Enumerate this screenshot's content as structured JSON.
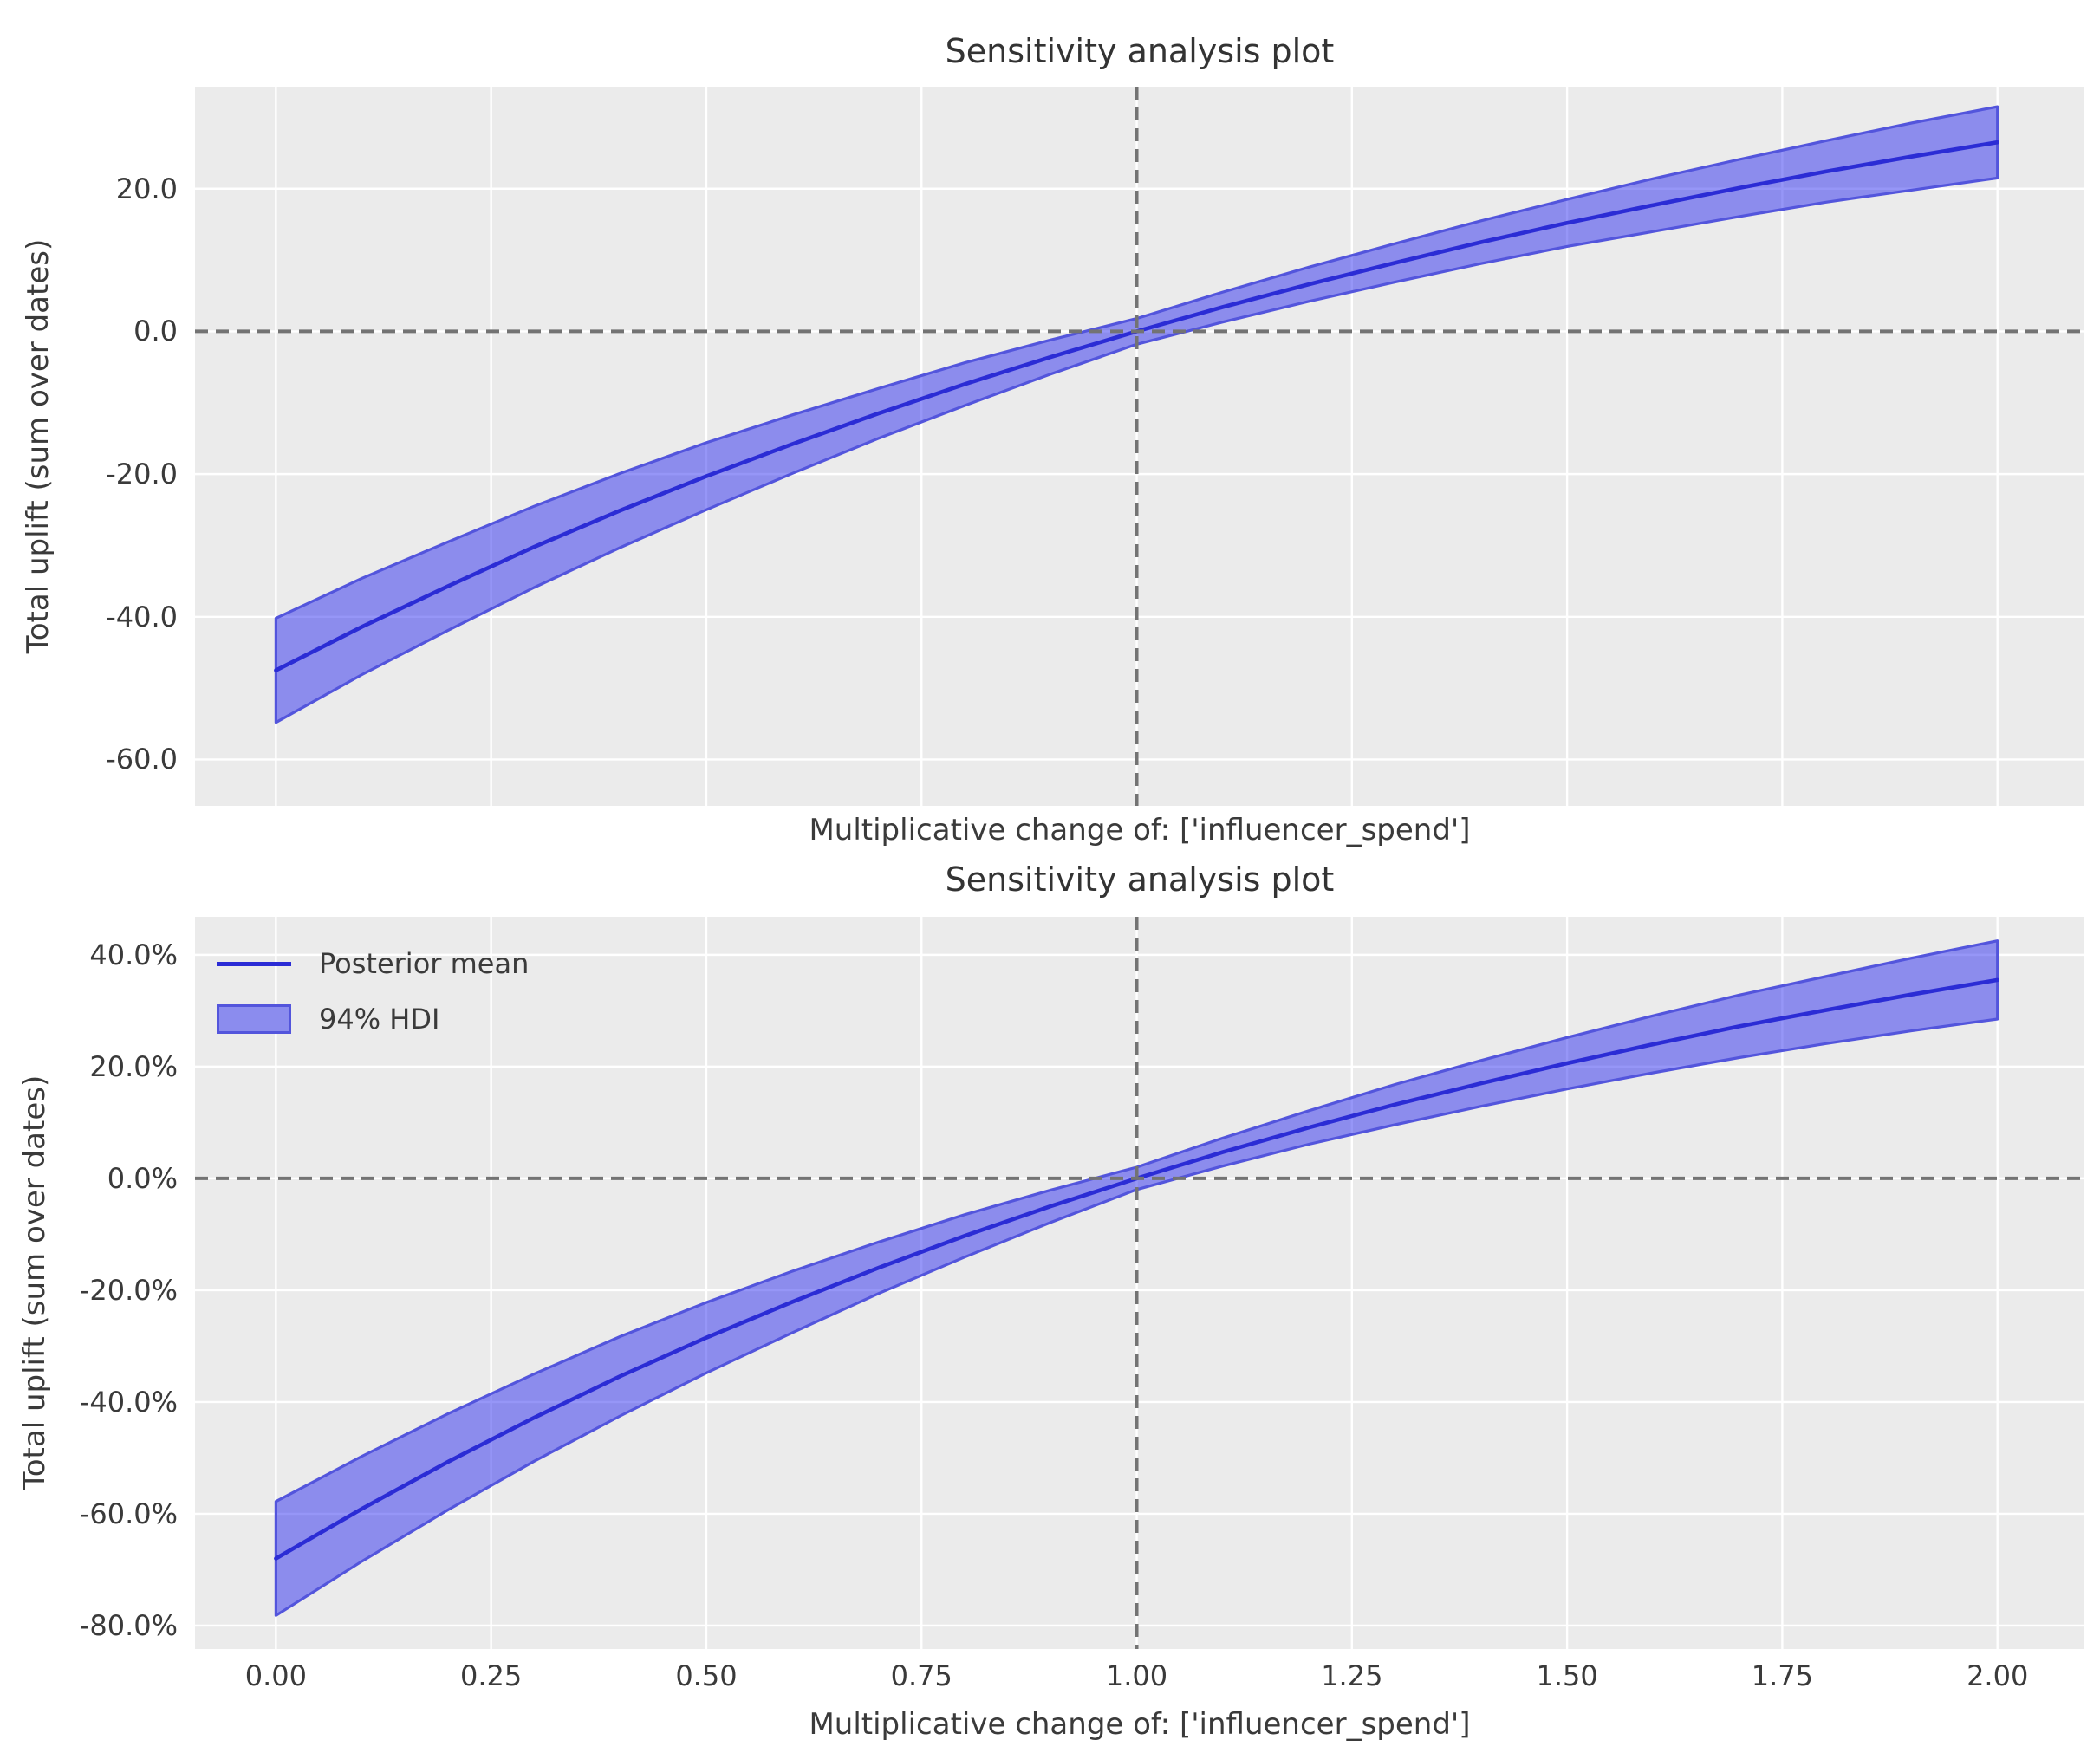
{
  "figure": {
    "background": "#ffffff",
    "axes_background": "#ebebeb",
    "grid_color": "#ffffff",
    "text_color": "#3a3a3a"
  },
  "colors": {
    "posterior_mean_line": "#2b2cd5",
    "hdi_band_fill": "#8b8cee",
    "hdi_band_fill_rgba": "rgba(45,45,240,0.5)",
    "hdi_band_edge": "#5355dc",
    "reference_dash": "#737373"
  },
  "chart_data": [
    {
      "type": "line",
      "title": "Sensitivity analysis plot",
      "xlabel": "Multiplicative change of: ['influencer_spend']",
      "ylabel": "Total uplift (sum over dates)",
      "xlim": [
        -0.094,
        2.101
      ],
      "ylim": [
        -66.5,
        34.3
      ],
      "grid": true,
      "reference_lines": {
        "vertical_x": 1.0,
        "horizontal_y": 0.0
      },
      "x": [
        0,
        0.1,
        0.2,
        0.3,
        0.4,
        0.5,
        0.6,
        0.7,
        0.8,
        0.9,
        1.0,
        1.1,
        1.2,
        1.3,
        1.4,
        1.5,
        1.6,
        1.7,
        1.8,
        1.9,
        2.0
      ],
      "series": [
        {
          "name": "Posterior mean",
          "values": [
            -47.5,
            -41.4,
            -35.7,
            -30.2,
            -25.1,
            -20.3,
            -15.8,
            -11.5,
            -7.4,
            -3.6,
            0,
            3.4,
            6.6,
            9.6,
            12.5,
            15.2,
            17.7,
            20.1,
            22.4,
            24.5,
            26.5
          ]
        },
        {
          "name": "94% HDI lower",
          "values": [
            -54.8,
            -48.1,
            -41.9,
            -35.9,
            -30.3,
            -25.0,
            -19.9,
            -15.0,
            -10.4,
            -6.0,
            -1.8,
            1.3,
            4.2,
            6.9,
            9.5,
            11.9,
            14.0,
            16.1,
            18.1,
            19.8,
            21.5
          ]
        },
        {
          "name": "94% HDI upper",
          "values": [
            -40.2,
            -34.6,
            -29.5,
            -24.5,
            -19.9,
            -15.6,
            -11.7,
            -8.0,
            -4.4,
            -1.2,
            1.8,
            5.5,
            9.0,
            12.3,
            15.5,
            18.5,
            21.4,
            24.1,
            26.7,
            29.2,
            31.5
          ]
        }
      ],
      "xticks": {
        "values": [
          0,
          0.25,
          0.5,
          0.75,
          1.0,
          1.25,
          1.5,
          1.75,
          2.0
        ],
        "labels": [
          "0.00",
          "0.25",
          "0.50",
          "0.75",
          "1.00",
          "1.25",
          "1.50",
          "1.75",
          "2.00"
        ],
        "show_labels": false
      },
      "yticks": {
        "values": [
          20,
          0,
          -20,
          -40,
          -60
        ],
        "labels": [
          "20.0",
          "0.0",
          "-20.0",
          "-40.0",
          "-60.0"
        ]
      }
    },
    {
      "type": "line",
      "title": "Sensitivity analysis plot",
      "xlabel": "Multiplicative change of: ['influencer_spend']",
      "ylabel": "Total uplift (sum over dates)",
      "xlim": [
        -0.094,
        2.101
      ],
      "ylim": [
        -84.2,
        46.8
      ],
      "grid": true,
      "reference_lines": {
        "vertical_x": 1.0,
        "horizontal_y": 0.0
      },
      "x": [
        0,
        0.1,
        0.2,
        0.3,
        0.4,
        0.5,
        0.6,
        0.7,
        0.8,
        0.9,
        1.0,
        1.1,
        1.2,
        1.3,
        1.4,
        1.5,
        1.6,
        1.7,
        1.8,
        1.9,
        2.0
      ],
      "series": [
        {
          "name": "Posterior mean",
          "values": [
            -68,
            -59.1,
            -50.7,
            -42.8,
            -35.4,
            -28.5,
            -22.1,
            -16.0,
            -10.3,
            -5.0,
            0,
            4.7,
            9.1,
            13.2,
            17.0,
            20.6,
            24.0,
            27.2,
            30.1,
            32.9,
            35.5
          ]
        },
        {
          "name": "94% HDI lower",
          "values": [
            -78.2,
            -68.5,
            -59.3,
            -50.6,
            -42.5,
            -34.8,
            -27.6,
            -20.6,
            -14.1,
            -7.9,
            -2.0,
            2.2,
            6.1,
            9.6,
            12.9,
            16.0,
            18.9,
            21.6,
            24.1,
            26.4,
            28.5
          ]
        },
        {
          "name": "94% HDI upper",
          "values": [
            -57.8,
            -49.7,
            -42.1,
            -35.0,
            -28.3,
            -22.2,
            -16.6,
            -11.4,
            -6.5,
            -2.1,
            2.0,
            7.2,
            12.1,
            16.8,
            21.1,
            25.2,
            29.1,
            32.8,
            36.1,
            39.4,
            42.5
          ]
        }
      ],
      "xticks": {
        "values": [
          0,
          0.25,
          0.5,
          0.75,
          1.0,
          1.25,
          1.5,
          1.75,
          2.0
        ],
        "labels": [
          "0.00",
          "0.25",
          "0.50",
          "0.75",
          "1.00",
          "1.25",
          "1.50",
          "1.75",
          "2.00"
        ],
        "show_labels": true
      },
      "yticks": {
        "values": [
          40,
          20,
          0,
          -20,
          -40,
          -60,
          -80
        ],
        "labels": [
          "40.0%",
          "20.0%",
          "0.0%",
          "-20.0%",
          "-40.0%",
          "-60.0%",
          "-80.0%"
        ]
      },
      "legend": {
        "position": "upper-left",
        "items": [
          {
            "type": "line",
            "label": "Posterior mean"
          },
          {
            "type": "patch",
            "label": "94% HDI"
          }
        ]
      }
    }
  ]
}
